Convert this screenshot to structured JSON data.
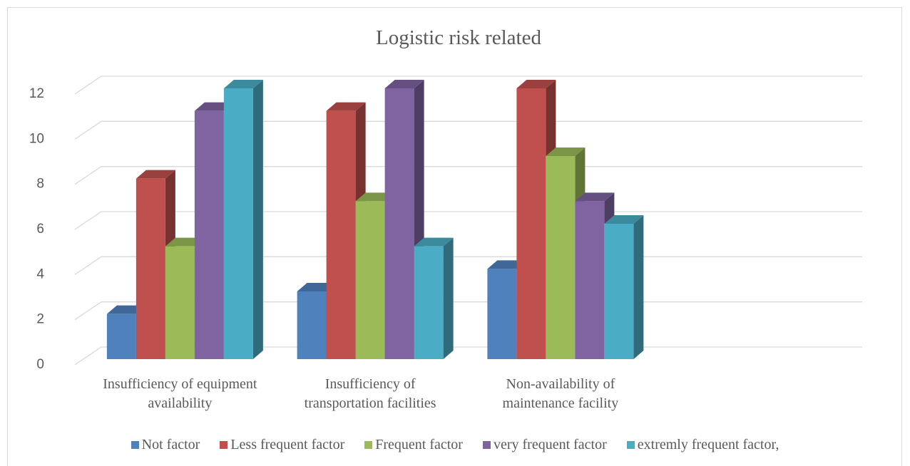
{
  "chart_data": {
    "type": "bar3d",
    "title": "Logistic risk related",
    "categories": [
      "Insufficiency of equipment availability",
      "Insufficiency of transportation facilities",
      "Non-availability of maintenance facility",
      null
    ],
    "series": [
      {
        "name": "Not factor",
        "color": "#4f81bd",
        "values": [
          2,
          3,
          4,
          null
        ]
      },
      {
        "name": "Less frequent factor",
        "color": "#c0504d",
        "values": [
          8,
          11,
          12,
          null
        ]
      },
      {
        "name": "Frequent factor",
        "color": "#9bbb59",
        "values": [
          5,
          7,
          9,
          null
        ]
      },
      {
        "name": "very frequent factor",
        "color": "#8064a2",
        "values": [
          11,
          12,
          7,
          null
        ]
      },
      {
        "name": "extremly frequent factor,",
        "color": "#4bacc6",
        "values": [
          12,
          5,
          6,
          null
        ]
      }
    ],
    "ylim": [
      0,
      12
    ],
    "yticks": [
      0,
      2,
      4,
      6,
      8,
      10,
      12
    ],
    "grid": true,
    "legend": "bottom"
  }
}
